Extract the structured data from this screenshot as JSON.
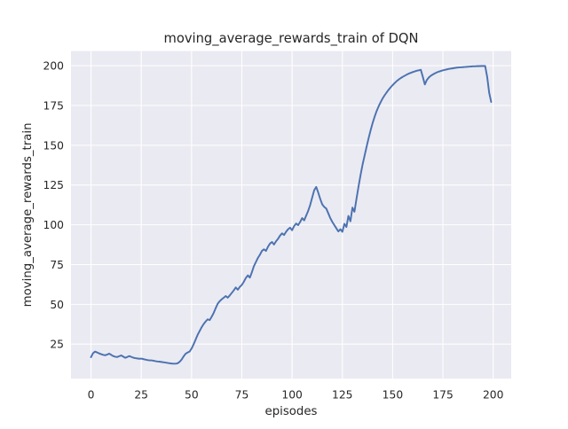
{
  "chart_data": {
    "type": "line",
    "title": "moving_average_rewards_train of DQN",
    "xlabel": "episodes",
    "ylabel": "moving_average_rewards_train",
    "xlim": [
      -9.95,
      208.95
    ],
    "ylim": [
      3.3,
      209.2
    ],
    "xticks": [
      0,
      25,
      50,
      75,
      100,
      125,
      150,
      175,
      200
    ],
    "yticks": [
      25,
      50,
      75,
      100,
      125,
      150,
      175,
      200
    ],
    "grid": true,
    "legend": "none",
    "style": {
      "line_color": "#4c72b0",
      "plot_background": "#eaeaf2",
      "grid_color": "#ffffff",
      "figure_background": "#ffffff",
      "text_color": "#262626"
    },
    "series": [
      {
        "name": "moving_average_rewards_train",
        "x": [
          0,
          1,
          2,
          3,
          4,
          5,
          6,
          7,
          8,
          9,
          10,
          11,
          12,
          13,
          14,
          15,
          16,
          17,
          18,
          19,
          20,
          21,
          22,
          23,
          24,
          25,
          26,
          27,
          28,
          29,
          30,
          31,
          32,
          33,
          34,
          35,
          36,
          37,
          38,
          39,
          40,
          41,
          42,
          43,
          44,
          45,
          46,
          47,
          48,
          49,
          50,
          51,
          52,
          53,
          54,
          55,
          56,
          57,
          58,
          59,
          60,
          61,
          62,
          63,
          64,
          65,
          66,
          67,
          68,
          69,
          70,
          71,
          72,
          73,
          74,
          75,
          76,
          77,
          78,
          79,
          80,
          81,
          82,
          83,
          84,
          85,
          86,
          87,
          88,
          89,
          90,
          91,
          92,
          93,
          94,
          95,
          96,
          97,
          98,
          99,
          100,
          101,
          102,
          103,
          104,
          105,
          106,
          107,
          108,
          109,
          110,
          111,
          112,
          113,
          114,
          115,
          116,
          117,
          118,
          119,
          120,
          121,
          122,
          123,
          124,
          125,
          126,
          127,
          128,
          129,
          130,
          131,
          132,
          133,
          134,
          135,
          136,
          137,
          138,
          139,
          140,
          141,
          142,
          143,
          144,
          145,
          146,
          147,
          148,
          149,
          150,
          151,
          152,
          153,
          154,
          155,
          156,
          157,
          158,
          159,
          160,
          161,
          162,
          163,
          164,
          165,
          166,
          167,
          168,
          169,
          170,
          171,
          172,
          173,
          174,
          175,
          176,
          177,
          178,
          179,
          180,
          181,
          182,
          183,
          184,
          185,
          186,
          187,
          188,
          189,
          190,
          191,
          192,
          193,
          194,
          195,
          196,
          197,
          198,
          199
        ],
        "values": [
          16.8,
          19.3,
          20.3,
          19.8,
          19.2,
          18.7,
          18.3,
          18.0,
          18.4,
          19.0,
          18.3,
          17.5,
          17.1,
          16.9,
          17.4,
          17.9,
          17.2,
          16.4,
          16.9,
          17.5,
          17.0,
          16.5,
          16.2,
          16.0,
          15.8,
          15.9,
          15.6,
          15.3,
          15.0,
          14.8,
          14.8,
          14.6,
          14.3,
          14.1,
          14.0,
          13.8,
          13.6,
          13.4,
          13.2,
          13.0,
          12.8,
          12.7,
          12.7,
          12.9,
          13.8,
          15.2,
          17.2,
          18.9,
          19.7,
          20.3,
          22.2,
          24.8,
          27.8,
          30.8,
          33.2,
          35.6,
          37.6,
          39.2,
          40.6,
          40.1,
          42.2,
          44.6,
          47.6,
          50.4,
          52.0,
          53.2,
          54.2,
          55.2,
          54.2,
          55.6,
          57.2,
          58.8,
          60.6,
          59.2,
          61.0,
          62.2,
          64.2,
          66.6,
          68.2,
          66.8,
          70.2,
          74.0,
          76.6,
          79.2,
          81.2,
          83.6,
          84.6,
          83.6,
          86.2,
          88.2,
          89.2,
          87.6,
          89.6,
          91.2,
          93.2,
          94.6,
          93.6,
          95.6,
          97.2,
          98.2,
          96.6,
          99.2,
          100.8,
          99.8,
          101.8,
          104.2,
          102.8,
          105.8,
          108.8,
          112.5,
          117.2,
          121.8,
          123.8,
          120.2,
          116.2,
          112.8,
          111.2,
          110.2,
          107.2,
          104.2,
          101.8,
          99.8,
          97.8,
          95.8,
          97.2,
          95.6,
          100.6,
          98.6,
          105.6,
          102.2,
          110.8,
          108.2,
          116.2,
          123.8,
          131.0,
          137.6,
          143.2,
          148.8,
          154.2,
          159.2,
          163.8,
          167.8,
          171.4,
          174.4,
          177.0,
          179.4,
          181.4,
          183.2,
          184.9,
          186.4,
          187.8,
          189.1,
          190.3,
          191.3,
          192.2,
          193.0,
          193.7,
          194.4,
          195.0,
          195.5,
          196.0,
          196.4,
          196.8,
          197.1,
          197.4,
          193.0,
          188.2,
          191.0,
          192.6,
          193.7,
          194.5,
          195.2,
          195.8,
          196.3,
          196.7,
          197.1,
          197.4,
          197.7,
          198.0,
          198.2,
          198.4,
          198.6,
          198.8,
          198.9,
          199.0,
          199.1,
          199.2,
          199.3,
          199.4,
          199.5,
          199.6,
          199.6,
          199.7,
          199.7,
          199.8,
          199.8,
          199.8,
          193.0,
          183.0,
          177.2
        ]
      }
    ]
  }
}
